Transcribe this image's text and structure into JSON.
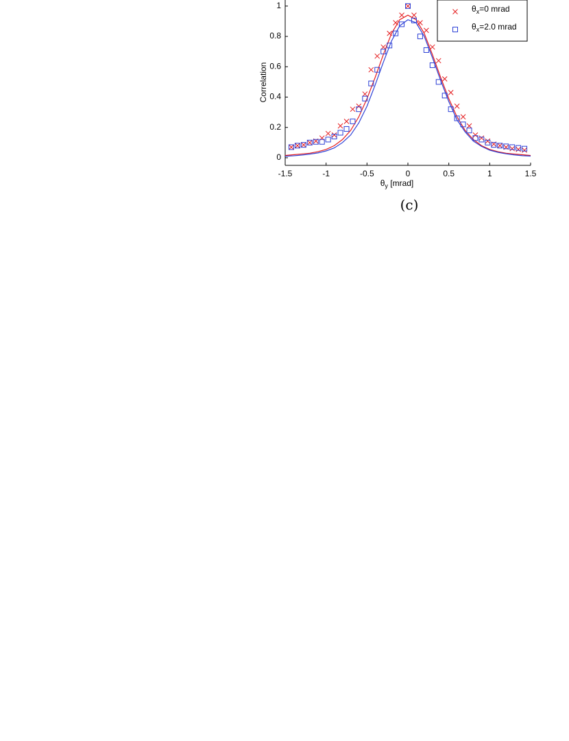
{
  "chart_data": {
    "type": "scatter",
    "caption": "(c)",
    "x_label": "θy [mrad]",
    "y_label": "Correlation",
    "xlim": [
      -1.5,
      1.5
    ],
    "ylim": [
      -0.05,
      1.04
    ],
    "xticks": [
      -1.5,
      -1,
      -0.5,
      0,
      0.5,
      1,
      1.5
    ],
    "yticks": [
      0,
      0.2,
      0.4,
      0.6,
      0.8,
      1
    ],
    "grid": false,
    "legend": "upper right",
    "series": [
      {
        "name": "θx=0 mrad",
        "color": "#e41a1c",
        "marker": "x",
        "x": [
          -1.425,
          -1.35,
          -1.275,
          -1.2,
          -1.125,
          -1.05,
          -0.975,
          -0.9,
          -0.825,
          -0.75,
          -0.675,
          -0.6,
          -0.525,
          -0.45,
          -0.375,
          -0.3,
          -0.225,
          -0.15,
          -0.075,
          0,
          0.075,
          0.15,
          0.225,
          0.3,
          0.375,
          0.45,
          0.525,
          0.6,
          0.675,
          0.75,
          0.825,
          0.9,
          0.975,
          1.05,
          1.125,
          1.2,
          1.275,
          1.35,
          1.425
        ],
        "values": [
          0.07,
          0.08,
          0.085,
          0.1,
          0.11,
          0.13,
          0.16,
          0.15,
          0.21,
          0.24,
          0.32,
          0.34,
          0.42,
          0.58,
          0.67,
          0.73,
          0.82,
          0.89,
          0.94,
          1.0,
          0.94,
          0.89,
          0.84,
          0.73,
          0.64,
          0.52,
          0.43,
          0.34,
          0.27,
          0.21,
          0.15,
          0.13,
          0.11,
          0.09,
          0.08,
          0.07,
          0.06,
          0.055,
          0.05
        ]
      },
      {
        "name": "θx=2.0 mrad",
        "color": "#2b3fd6",
        "marker": "square",
        "x": [
          -1.425,
          -1.35,
          -1.275,
          -1.2,
          -1.125,
          -1.05,
          -0.975,
          -0.9,
          -0.825,
          -0.75,
          -0.675,
          -0.6,
          -0.525,
          -0.45,
          -0.375,
          -0.3,
          -0.225,
          -0.15,
          -0.075,
          0,
          0.075,
          0.15,
          0.225,
          0.3,
          0.375,
          0.45,
          0.525,
          0.6,
          0.675,
          0.75,
          0.825,
          0.9,
          0.975,
          1.05,
          1.125,
          1.2,
          1.275,
          1.35,
          1.425
        ],
        "values": [
          0.07,
          0.08,
          0.085,
          0.1,
          0.105,
          0.105,
          0.12,
          0.14,
          0.165,
          0.19,
          0.24,
          0.32,
          0.39,
          0.49,
          0.58,
          0.7,
          0.74,
          0.82,
          0.88,
          1.0,
          0.905,
          0.8,
          0.71,
          0.61,
          0.5,
          0.41,
          0.32,
          0.26,
          0.22,
          0.18,
          0.13,
          0.12,
          0.1,
          0.085,
          0.08,
          0.075,
          0.07,
          0.065,
          0.06
        ]
      }
    ],
    "fit_lines": [
      {
        "color": "#e41a1c",
        "x": [
          -1.5,
          -1.4,
          -1.3,
          -1.2,
          -1.1,
          -1.0,
          -0.9,
          -0.8,
          -0.7,
          -0.6,
          -0.5,
          -0.4,
          -0.3,
          -0.2,
          -0.1,
          0,
          0.1,
          0.2,
          0.3,
          0.4,
          0.5,
          0.6,
          0.7,
          0.8,
          0.9,
          1.0,
          1.1,
          1.2,
          1.3,
          1.4,
          1.5
        ],
        "values": [
          0.015,
          0.02,
          0.025,
          0.03,
          0.04,
          0.055,
          0.08,
          0.12,
          0.18,
          0.27,
          0.39,
          0.53,
          0.68,
          0.82,
          0.91,
          0.94,
          0.91,
          0.82,
          0.68,
          0.53,
          0.39,
          0.27,
          0.18,
          0.12,
          0.08,
          0.055,
          0.04,
          0.03,
          0.025,
          0.02,
          0.015
        ]
      },
      {
        "color": "#2b3fd6",
        "x": [
          -1.5,
          -1.4,
          -1.3,
          -1.2,
          -1.1,
          -1.0,
          -0.9,
          -0.8,
          -0.7,
          -0.6,
          -0.5,
          -0.4,
          -0.3,
          -0.2,
          -0.1,
          0,
          0.1,
          0.2,
          0.3,
          0.4,
          0.5,
          0.6,
          0.7,
          0.8,
          0.9,
          1.0,
          1.1,
          1.2,
          1.3,
          1.4,
          1.5
        ],
        "values": [
          0.01,
          0.013,
          0.018,
          0.024,
          0.032,
          0.045,
          0.065,
          0.1,
          0.15,
          0.23,
          0.34,
          0.48,
          0.63,
          0.77,
          0.87,
          0.91,
          0.89,
          0.8,
          0.66,
          0.51,
          0.37,
          0.25,
          0.17,
          0.11,
          0.075,
          0.05,
          0.036,
          0.026,
          0.019,
          0.014,
          0.011
        ]
      }
    ]
  }
}
